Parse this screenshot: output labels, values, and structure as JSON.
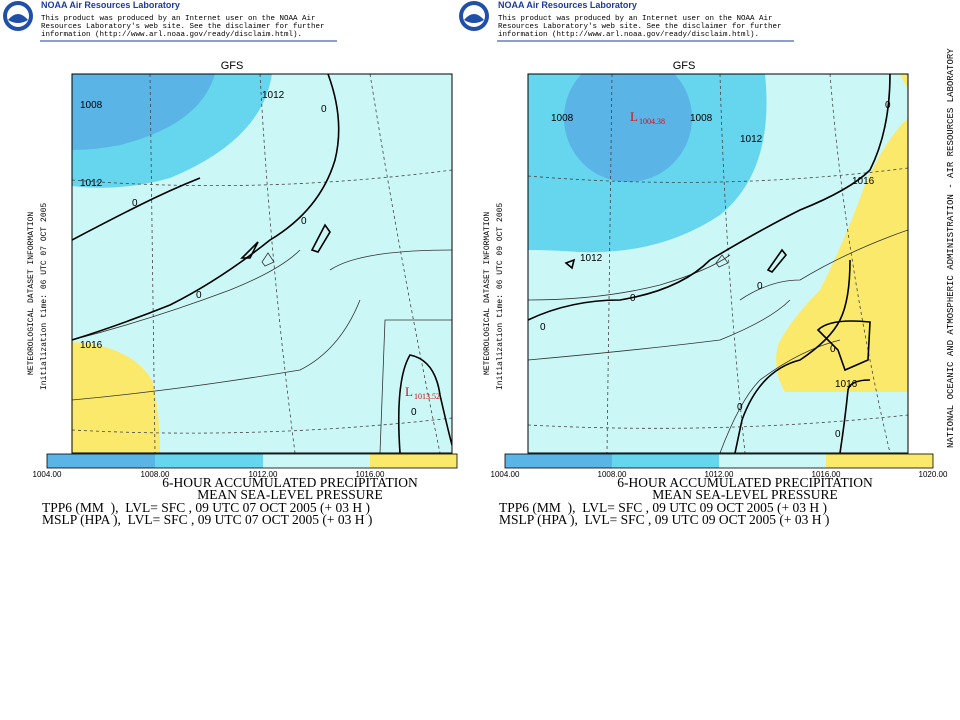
{
  "page_credit": "NATIONAL OCEANIC AND ATMOSPHERIC ADMINISTRATION - AIR RESOURCES LABORATORY",
  "panels": [
    {
      "header": {
        "title": "NOAA Air Resources Laboratory",
        "disclaimer": [
          "This product was produced by an Internet user on the NOAA Air",
          "Resources Laboratory's web site.  See the disclaimer for further",
          "information (http://www.arl.noaa.gov/ready/disclaim.html)."
        ]
      },
      "map_title": "GFS",
      "side_label": "METEOROLOGICAL DATASET INFORMATION",
      "init_time": "Initialization time: 06 UTC 07 OCT 2005",
      "contour_labels": [
        "1008",
        "1012",
        "1012",
        "1016",
        "0",
        "0",
        "0",
        "0",
        "0"
      ],
      "low": {
        "symbol": "L",
        "value": "1013.52"
      },
      "colorbar_labels": [
        "1004.00",
        "1008.00",
        "1012.00",
        "1016.00"
      ],
      "caption": [
        "6-HOUR ACCUMULATED PRECIPITATION",
        "MEAN SEA-LEVEL PRESSURE",
        "TPP6 (MM  ),  LVL= SFC , 09 UTC 07 OCT 2005 (+ 03 H )",
        "MSLP (HPA ),  LVL= SFC , 09 UTC 07 OCT 2005 (+ 03 H )"
      ]
    },
    {
      "header": {
        "title": "NOAA Air Resources Laboratory",
        "disclaimer": [
          "This product was produced by an Internet user on the NOAA Air",
          "Resources Laboratory's web site.  See the disclaimer for further",
          "information (http://www.arl.noaa.gov/ready/disclaim.html)."
        ]
      },
      "map_title": "GFS",
      "side_label": "METEOROLOGICAL DATASET INFORMATION",
      "init_time": "Initialization time: 06 UTC 09 OCT 2005",
      "contour_labels": [
        "1008",
        "1008",
        "1012",
        "1012",
        "1016",
        "1016",
        "0",
        "0",
        "0",
        "0",
        "0",
        "0",
        "0"
      ],
      "low": {
        "symbol": "L",
        "value": "1004.38"
      },
      "colorbar_labels": [
        "1004.00",
        "1008.00",
        "1012.00",
        "1016.00",
        "1020.00"
      ],
      "caption": [
        "6-HOUR ACCUMULATED PRECIPITATION",
        "MEAN SEA-LEVEL PRESSURE",
        "TPP6 (MM  ),  LVL= SFC , 09 UTC 09 OCT 2005 (+ 03 H )",
        "MSLP (HPA ),  LVL= SFC , 09 UTC 09 OCT 2005 (+ 03 H )"
      ]
    }
  ]
}
